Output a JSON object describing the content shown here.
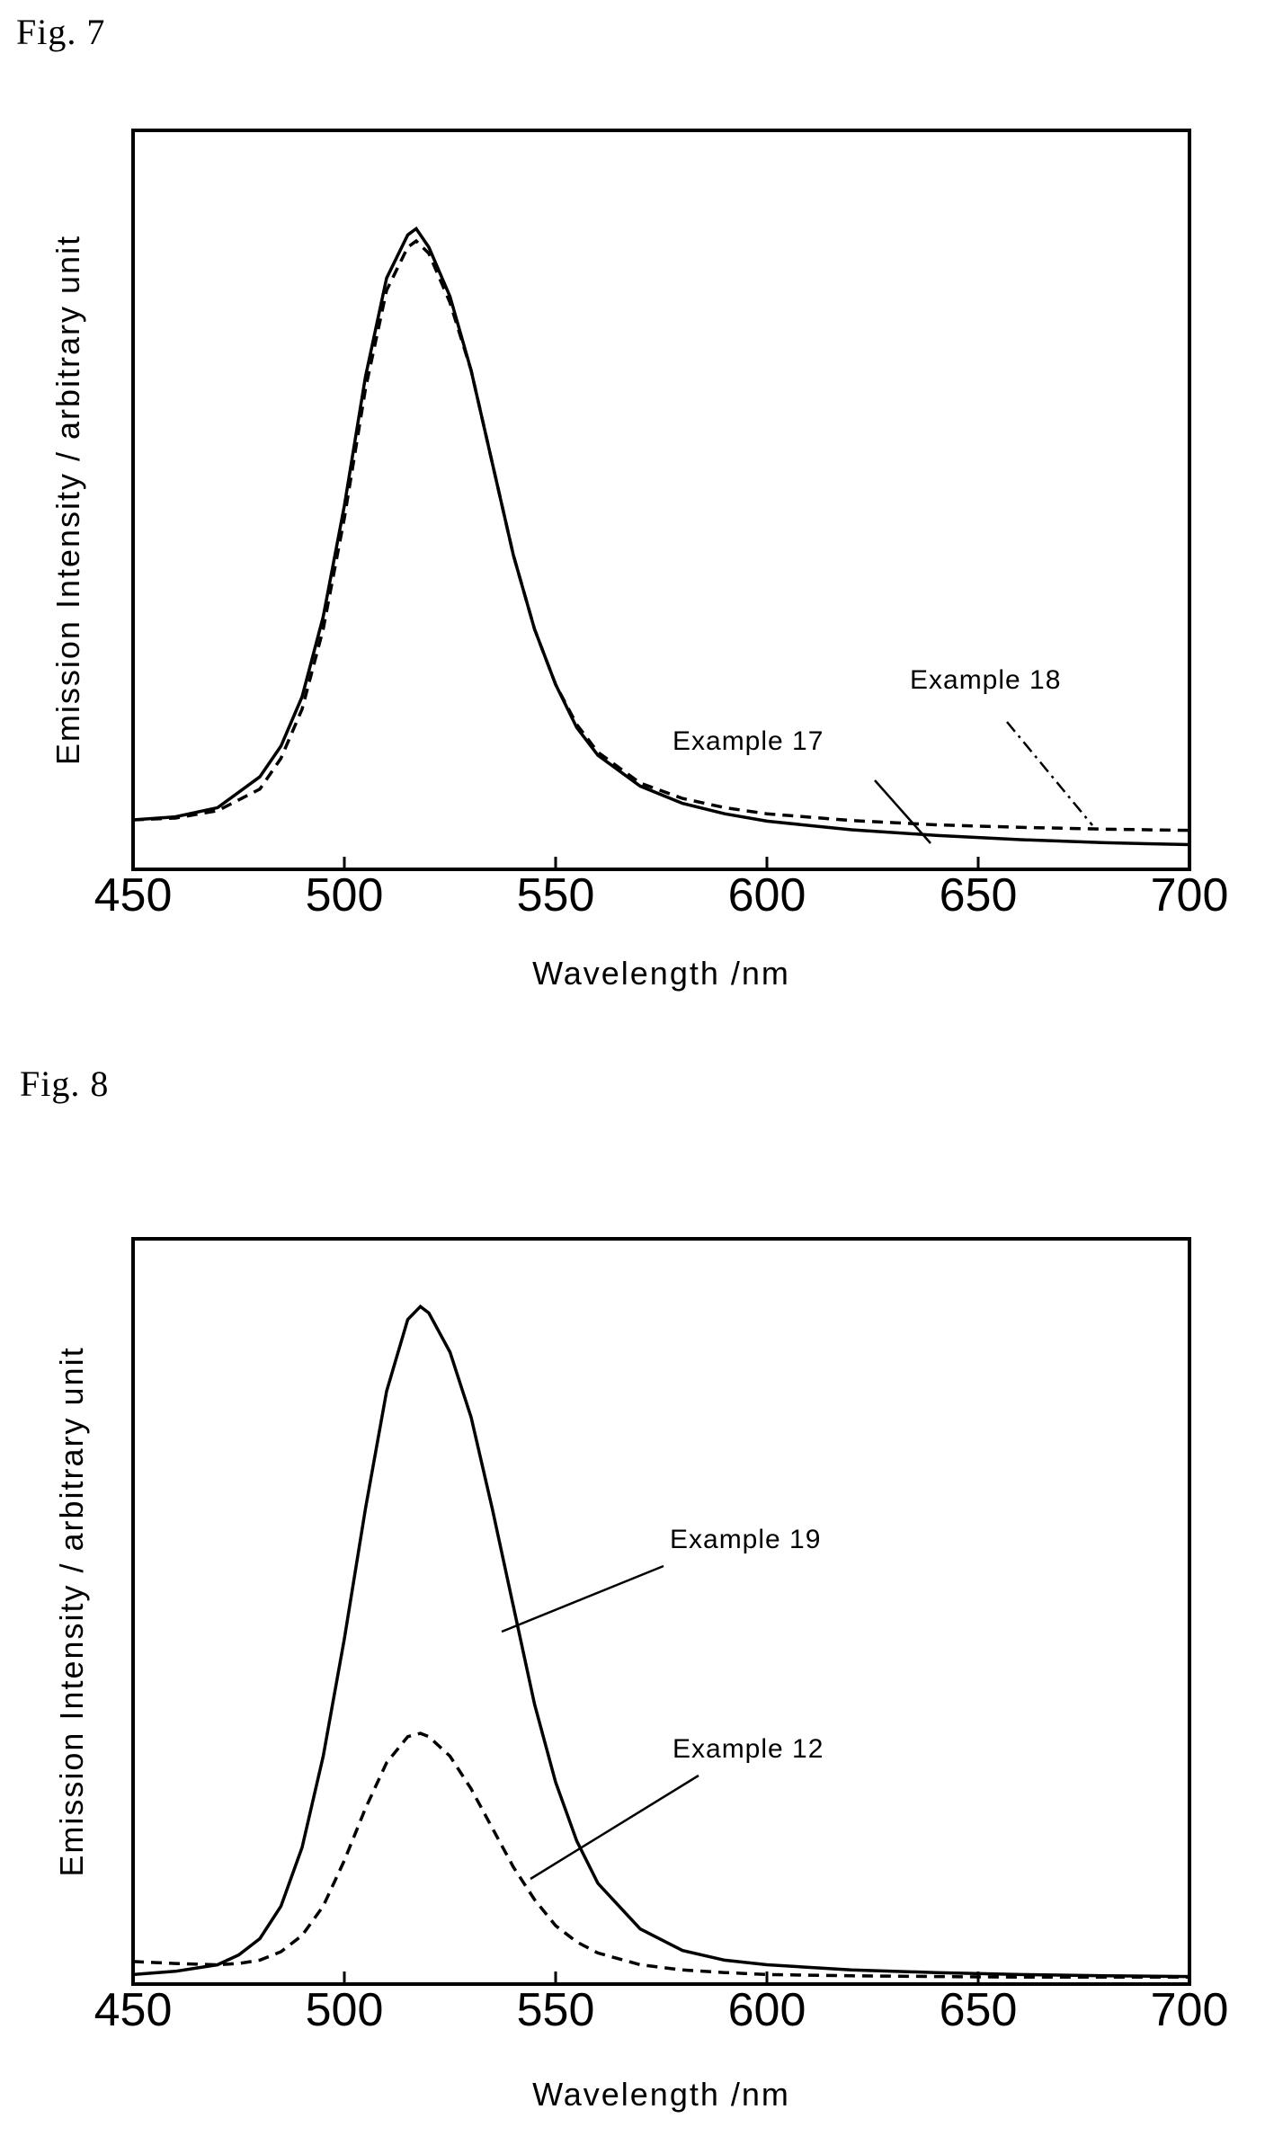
{
  "figures": [
    {
      "label": "Fig.  7"
    },
    {
      "label": "Fig.  8"
    }
  ],
  "chart_data": [
    {
      "type": "line",
      "title": "",
      "xlabel": "Wavelength /nm",
      "ylabel": "Emission Intensity / arbitrary unit",
      "xlim": [
        450,
        700
      ],
      "ylim": [
        0,
        1.1
      ],
      "xticks": [
        450,
        500,
        550,
        600,
        650,
        700
      ],
      "grid": false,
      "series": [
        {
          "name": "Example 17",
          "style": "solid",
          "x": [
            450,
            460,
            470,
            480,
            485,
            490,
            495,
            500,
            505,
            510,
            515,
            517,
            520,
            525,
            530,
            535,
            540,
            545,
            550,
            555,
            560,
            570,
            580,
            590,
            600,
            620,
            640,
            660,
            680,
            700
          ],
          "y": [
            0.07,
            0.075,
            0.09,
            0.14,
            0.19,
            0.27,
            0.4,
            0.58,
            0.79,
            0.95,
            1.02,
            1.03,
            1.0,
            0.92,
            0.8,
            0.65,
            0.5,
            0.38,
            0.29,
            0.22,
            0.175,
            0.125,
            0.097,
            0.08,
            0.068,
            0.054,
            0.045,
            0.038,
            0.033,
            0.03
          ]
        },
        {
          "name": "Example 18",
          "style": "dashed",
          "x": [
            450,
            460,
            470,
            480,
            485,
            490,
            495,
            500,
            505,
            510,
            515,
            517,
            520,
            525,
            530,
            535,
            540,
            545,
            550,
            555,
            560,
            570,
            580,
            590,
            600,
            620,
            640,
            660,
            680,
            700
          ],
          "y": [
            0.07,
            0.073,
            0.085,
            0.12,
            0.17,
            0.25,
            0.38,
            0.56,
            0.77,
            0.93,
            1.0,
            1.01,
            0.99,
            0.91,
            0.8,
            0.65,
            0.5,
            0.38,
            0.29,
            0.225,
            0.18,
            0.13,
            0.105,
            0.09,
            0.08,
            0.069,
            0.062,
            0.058,
            0.055,
            0.053
          ]
        }
      ],
      "annotations": [
        {
          "text": "Example 17"
        },
        {
          "text": "Example 18"
        }
      ]
    },
    {
      "type": "line",
      "title": "",
      "xlabel": "Wavelength /nm",
      "ylabel": "Emission Intensity / arbitrary unit",
      "xlim": [
        450,
        700
      ],
      "ylim": [
        0,
        1.1
      ],
      "xticks": [
        450,
        500,
        550,
        600,
        650,
        700
      ],
      "grid": false,
      "series": [
        {
          "name": "Example 19",
          "style": "solid",
          "x": [
            450,
            460,
            470,
            475,
            480,
            485,
            490,
            495,
            500,
            505,
            510,
            515,
            518,
            520,
            525,
            530,
            535,
            540,
            545,
            550,
            555,
            560,
            570,
            580,
            590,
            600,
            620,
            640,
            660,
            680,
            700
          ],
          "y": [
            0.005,
            0.01,
            0.02,
            0.035,
            0.06,
            0.11,
            0.2,
            0.34,
            0.52,
            0.72,
            0.9,
            1.01,
            1.03,
            1.02,
            0.96,
            0.86,
            0.72,
            0.57,
            0.42,
            0.3,
            0.21,
            0.145,
            0.075,
            0.042,
            0.027,
            0.02,
            0.012,
            0.008,
            0.005,
            0.003,
            0.002
          ]
        },
        {
          "name": "Example 12",
          "style": "dashed",
          "x": [
            450,
            460,
            470,
            475,
            480,
            485,
            490,
            495,
            500,
            505,
            510,
            515,
            518,
            520,
            525,
            530,
            535,
            540,
            545,
            550,
            555,
            560,
            570,
            580,
            590,
            600,
            620,
            640,
            660,
            680,
            700
          ],
          "y": [
            0.025,
            0.022,
            0.02,
            0.022,
            0.027,
            0.04,
            0.065,
            0.11,
            0.18,
            0.26,
            0.33,
            0.37,
            0.375,
            0.37,
            0.34,
            0.29,
            0.23,
            0.17,
            0.12,
            0.08,
            0.055,
            0.038,
            0.02,
            0.012,
            0.008,
            0.005,
            0.003,
            0.002,
            0.001,
            0.001,
            0.001
          ]
        }
      ],
      "annotations": [
        {
          "text": "Example 19"
        },
        {
          "text": "Example 12"
        }
      ]
    }
  ]
}
